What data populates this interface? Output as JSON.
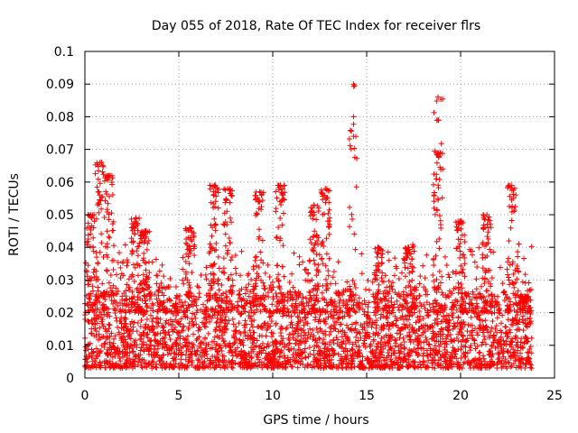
{
  "chart_data": {
    "type": "scatter",
    "title": "Day 055 of 2018, Rate Of TEC Index for receiver flrs",
    "xlabel": "GPS time / hours",
    "ylabel": "ROTI / TECUs",
    "xlim": [
      0,
      25
    ],
    "ylim": [
      0,
      0.1
    ],
    "xticks": [
      0,
      5,
      10,
      15,
      20,
      25
    ],
    "xtick_labels": [
      "0",
      "5",
      "10",
      "15",
      "20",
      "25"
    ],
    "yticks": [
      0,
      0.01,
      0.02,
      0.03,
      0.04,
      0.05,
      0.06,
      0.07,
      0.08,
      0.09,
      0.1
    ],
    "ytick_labels": [
      "0",
      "0.01",
      "0.02",
      "0.03",
      "0.04",
      "0.05",
      "0.06",
      "0.07",
      "0.08",
      "0.09",
      "0.1"
    ],
    "grid": true,
    "marker": "+",
    "color": "#ff0000",
    "series": [
      {
        "name": "ROTI",
        "x_range": [
          0,
          23.8
        ],
        "dense_band": [
          0.003,
          0.025
        ],
        "peaks": [
          {
            "x": 0.3,
            "y": 0.05
          },
          {
            "x": 0.8,
            "y": 0.066
          },
          {
            "x": 1.3,
            "y": 0.062
          },
          {
            "x": 2.7,
            "y": 0.049
          },
          {
            "x": 3.2,
            "y": 0.045
          },
          {
            "x": 5.6,
            "y": 0.046
          },
          {
            "x": 6.9,
            "y": 0.059
          },
          {
            "x": 7.6,
            "y": 0.058
          },
          {
            "x": 9.3,
            "y": 0.057
          },
          {
            "x": 10.4,
            "y": 0.059
          },
          {
            "x": 12.2,
            "y": 0.053
          },
          {
            "x": 12.8,
            "y": 0.058
          },
          {
            "x": 14.3,
            "y": 0.09
          },
          {
            "x": 14.3,
            "y": 0.08
          },
          {
            "x": 14.3,
            "y": 0.074
          },
          {
            "x": 15.6,
            "y": 0.04
          },
          {
            "x": 17.2,
            "y": 0.04
          },
          {
            "x": 18.8,
            "y": 0.086
          },
          {
            "x": 18.8,
            "y": 0.079
          },
          {
            "x": 18.8,
            "y": 0.069
          },
          {
            "x": 20.0,
            "y": 0.048
          },
          {
            "x": 21.4,
            "y": 0.05
          },
          {
            "x": 22.7,
            "y": 0.059
          },
          {
            "x": 23.4,
            "y": 0.025
          }
        ]
      }
    ]
  }
}
